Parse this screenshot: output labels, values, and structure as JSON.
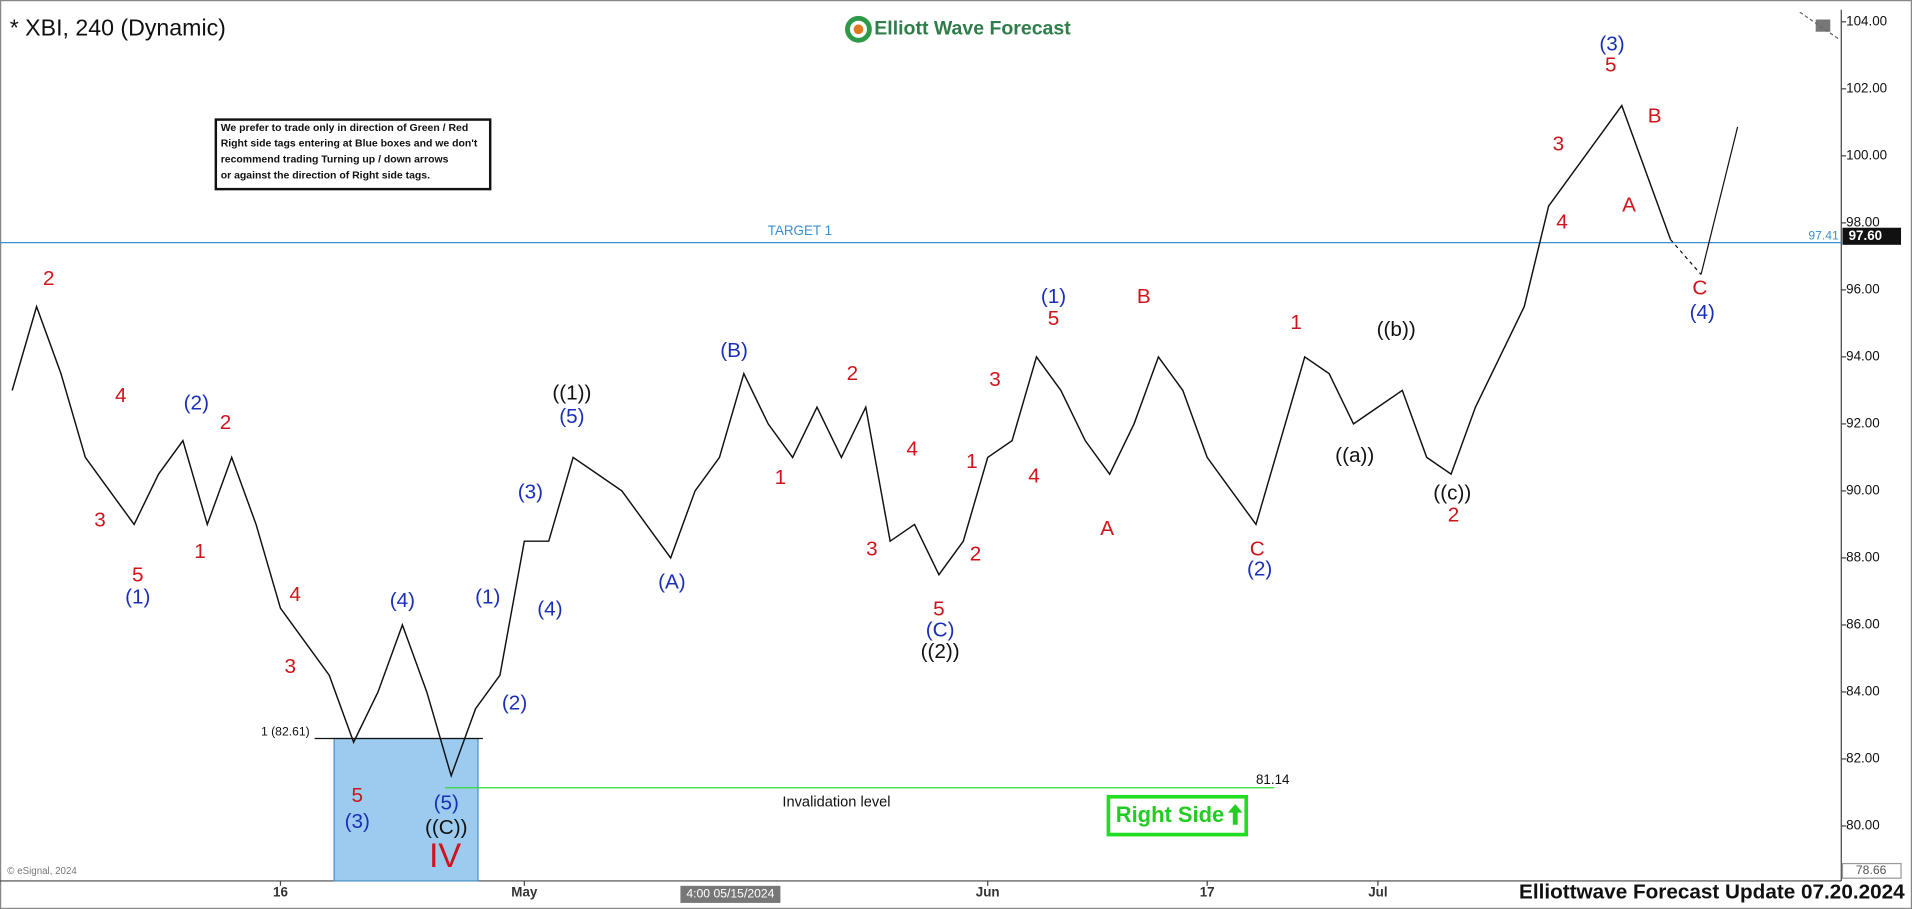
{
  "chart_data": {
    "type": "line",
    "title": "* XBI, 240 (Dynamic)",
    "logo": "Elliott Wave Forecast",
    "note": [
      "We prefer to trade only in direction of Green / Red",
      "Right side tags entering at Blue boxes and we don't",
      "recommend trading Turning up / down arrows",
      "or against the direction of Right side tags."
    ],
    "badge": "Right Side",
    "footer": "Elliottwave Forecast Update 07.20.2024",
    "copyright": "© eSignal, 2024",
    "cursor_label": "4:00 05/15/2024",
    "color": "#111111",
    "grid": false,
    "categories": [
      null,
      null,
      null,
      null,
      null,
      null,
      null,
      null,
      null,
      null,
      null,
      "16",
      null,
      null,
      null,
      null,
      null,
      null,
      null,
      null,
      null,
      "May",
      null,
      null,
      null,
      null,
      null,
      null,
      null,
      null,
      null,
      null,
      null,
      null,
      null,
      null,
      null,
      null,
      null,
      null,
      "Jun",
      null,
      null,
      null,
      null,
      null,
      null,
      null,
      null,
      "17",
      null,
      null,
      null,
      null,
      null,
      null,
      "Jul",
      null,
      null,
      null,
      null,
      null,
      null,
      null,
      null,
      null,
      null,
      null,
      null
    ],
    "values": [
      93,
      95.5,
      93.5,
      91,
      90,
      89,
      90.5,
      91.5,
      89,
      91,
      89,
      86.5,
      85.5,
      84.5,
      82.5,
      84,
      86,
      84,
      81.5,
      83.5,
      84.5,
      88.5,
      88.5,
      91,
      90.5,
      90,
      89,
      88,
      90,
      91,
      93.5,
      92,
      91,
      92.5,
      91,
      92.5,
      88.5,
      89,
      87.5,
      88.5,
      91,
      91.5,
      94,
      93,
      91.5,
      90.5,
      92,
      94,
      93,
      91,
      90,
      89,
      91.5,
      94,
      93.5,
      92,
      92.5,
      93,
      91,
      90.5,
      92.5,
      94,
      95.5,
      98.5,
      99.5,
      100.5,
      101.5,
      99.5,
      97.5
    ],
    "ylim": [
      78.36,
      104.36
    ],
    "yticks": [
      {
        "value": 80,
        "label": "80.00"
      },
      {
        "value": 82,
        "label": "82.00"
      },
      {
        "value": 84,
        "label": "84.00"
      },
      {
        "value": 86,
        "label": "86.00"
      },
      {
        "value": 88,
        "label": "88.00"
      },
      {
        "value": 90,
        "label": "90.00"
      },
      {
        "value": 92,
        "label": "92.00"
      },
      {
        "value": 94,
        "label": "94.00"
      },
      {
        "value": 96,
        "label": "96.00"
      },
      {
        "value": 98,
        "label": "98.00"
      },
      {
        "value": 100,
        "label": "100.00"
      },
      {
        "value": 102,
        "label": "102.00"
      },
      {
        "value": 104,
        "label": "104.00"
      }
    ],
    "target": {
      "name": "TARGET 1",
      "value": 97.41,
      "label": "97.41",
      "color": "#3a8fd0"
    },
    "invalidation": {
      "name": "Invalidation level",
      "value": 81.14,
      "label": "81.14",
      "color": "#33dd33"
    },
    "blue_box": {
      "value": 82.61,
      "label": "1 (82.61)",
      "color": "#9ccbef"
    },
    "last_price": {
      "value": 97.6,
      "label": "97.60"
    },
    "axis_low": {
      "value": 78.66,
      "label": "78.66"
    },
    "annotations": [
      {
        "text": "2",
        "color": "#d0141c"
      },
      {
        "text": "4",
        "color": "#d0141c"
      },
      {
        "text": "3",
        "color": "#d0141c"
      },
      {
        "text": "5",
        "color": "#d0141c"
      },
      {
        "text": "(1)",
        "color": "#1a2fb8"
      },
      {
        "text": "(2)",
        "color": "#1a2fb8"
      },
      {
        "text": "2",
        "color": "#d0141c"
      },
      {
        "text": "1",
        "color": "#d0141c"
      },
      {
        "text": "4",
        "color": "#d0141c"
      },
      {
        "text": "3",
        "color": "#d0141c"
      },
      {
        "text": "(4)",
        "color": "#1a2fb8"
      },
      {
        "text": "(1)",
        "color": "#1a2fb8"
      },
      {
        "text": "5",
        "color": "#d0141c"
      },
      {
        "text": "(3)",
        "color": "#1a2fb8"
      },
      {
        "text": "(5)",
        "color": "#1a2fb8"
      },
      {
        "text": "((C))",
        "color": "#111111"
      },
      {
        "text": "IV",
        "color": "#d0141c"
      },
      {
        "text": "(3)",
        "color": "#1a2fb8"
      },
      {
        "text": "(4)",
        "color": "#1a2fb8"
      },
      {
        "text": "(2)",
        "color": "#1a2fb8"
      },
      {
        "text": "((1))",
        "color": "#111111"
      },
      {
        "text": "(5)",
        "color": "#1a2fb8"
      },
      {
        "text": "(A)",
        "color": "#1a2fb8"
      },
      {
        "text": "(B)",
        "color": "#1a2fb8"
      },
      {
        "text": "1",
        "color": "#d0141c"
      },
      {
        "text": "2",
        "color": "#d0141c"
      },
      {
        "text": "3",
        "color": "#d0141c"
      },
      {
        "text": "4",
        "color": "#d0141c"
      },
      {
        "text": "5",
        "color": "#d0141c"
      },
      {
        "text": "(C)",
        "color": "#1a2fb8"
      },
      {
        "text": "((2))",
        "color": "#111111"
      },
      {
        "text": "1",
        "color": "#d0141c"
      },
      {
        "text": "2",
        "color": "#d0141c"
      },
      {
        "text": "3",
        "color": "#d0141c"
      },
      {
        "text": "4",
        "color": "#d0141c"
      },
      {
        "text": "(1)",
        "color": "#1a2fb8"
      },
      {
        "text": "5",
        "color": "#d0141c"
      },
      {
        "text": "A",
        "color": "#d0141c"
      },
      {
        "text": "B",
        "color": "#d0141c"
      },
      {
        "text": "C",
        "color": "#d0141c"
      },
      {
        "text": "(2)",
        "color": "#1a2fb8"
      },
      {
        "text": "1",
        "color": "#d0141c"
      },
      {
        "text": "((a))",
        "color": "#111111"
      },
      {
        "text": "((b))",
        "color": "#111111"
      },
      {
        "text": "((c))",
        "color": "#111111"
      },
      {
        "text": "2",
        "color": "#d0141c"
      },
      {
        "text": "3",
        "color": "#d0141c"
      },
      {
        "text": "4",
        "color": "#d0141c"
      },
      {
        "text": "(3)",
        "color": "#1a2fb8"
      },
      {
        "text": "5",
        "color": "#d0141c"
      },
      {
        "text": "A",
        "color": "#d0141c"
      },
      {
        "text": "B",
        "color": "#d0141c"
      },
      {
        "text": "C",
        "color": "#d0141c"
      },
      {
        "text": "(4)",
        "color": "#1a2fb8"
      }
    ]
  }
}
